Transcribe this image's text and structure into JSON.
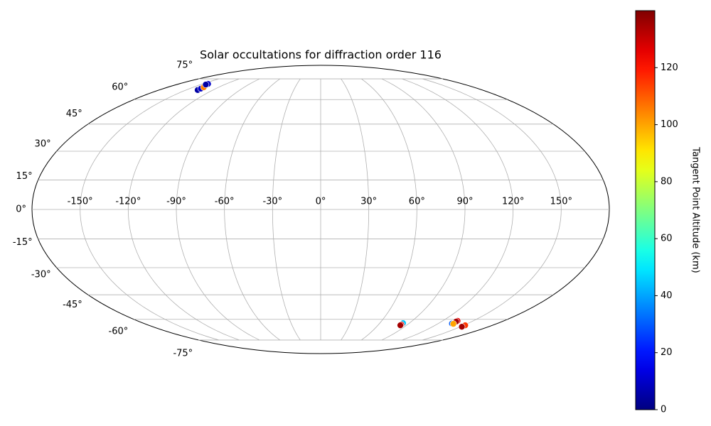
{
  "chart_data": {
    "type": "scatter",
    "projection": "mollweide",
    "title": "Solar occultations for diffraction order 116",
    "x": [
      -137,
      -137,
      -137.5,
      -141,
      -142,
      -143,
      -143.5,
      83.5,
      83.5,
      83.5,
      134.5,
      134.5,
      134,
      136,
      151.5,
      151.5
    ],
    "y": [
      66.5,
      67.5,
      68.5,
      70.5,
      70.5,
      71,
      70.5,
      -62.5,
      -63.5,
      -64,
      -61,
      -61.5,
      -62.8,
      -63,
      -64,
      -65
    ],
    "values": [
      5,
      10,
      105,
      100,
      115,
      10,
      5,
      45,
      125,
      135,
      125,
      135,
      30,
      100,
      115,
      135
    ],
    "xticks": [
      {
        "value": -150,
        "label": "-150°"
      },
      {
        "value": -120,
        "label": "-120°"
      },
      {
        "value": -90,
        "label": "-90°"
      },
      {
        "value": -60,
        "label": "-60°"
      },
      {
        "value": -30,
        "label": "-30°"
      },
      {
        "value": 0,
        "label": "0°"
      },
      {
        "value": 30,
        "label": "30°"
      },
      {
        "value": 60,
        "label": "60°"
      },
      {
        "value": 90,
        "label": "90°"
      },
      {
        "value": 120,
        "label": "120°"
      },
      {
        "value": 150,
        "label": "150°"
      }
    ],
    "yticks": [
      {
        "value": -75,
        "label": "-75°"
      },
      {
        "value": -60,
        "label": "-60°"
      },
      {
        "value": -45,
        "label": "-45°"
      },
      {
        "value": -30,
        "label": "-30°"
      },
      {
        "value": -15,
        "label": "-15°"
      },
      {
        "value": 0,
        "label": "0°"
      },
      {
        "value": 15,
        "label": "15°"
      },
      {
        "value": 30,
        "label": "30°"
      },
      {
        "value": 45,
        "label": "45°"
      },
      {
        "value": 60,
        "label": "60°"
      },
      {
        "value": 75,
        "label": "75°"
      }
    ],
    "grid": true,
    "colorbar": {
      "label": "Tangent Point Altitude (km)",
      "cmap": "jet",
      "lim": [
        0,
        140
      ],
      "ticks": [
        0,
        20,
        40,
        60,
        80,
        100,
        120
      ]
    }
  }
}
